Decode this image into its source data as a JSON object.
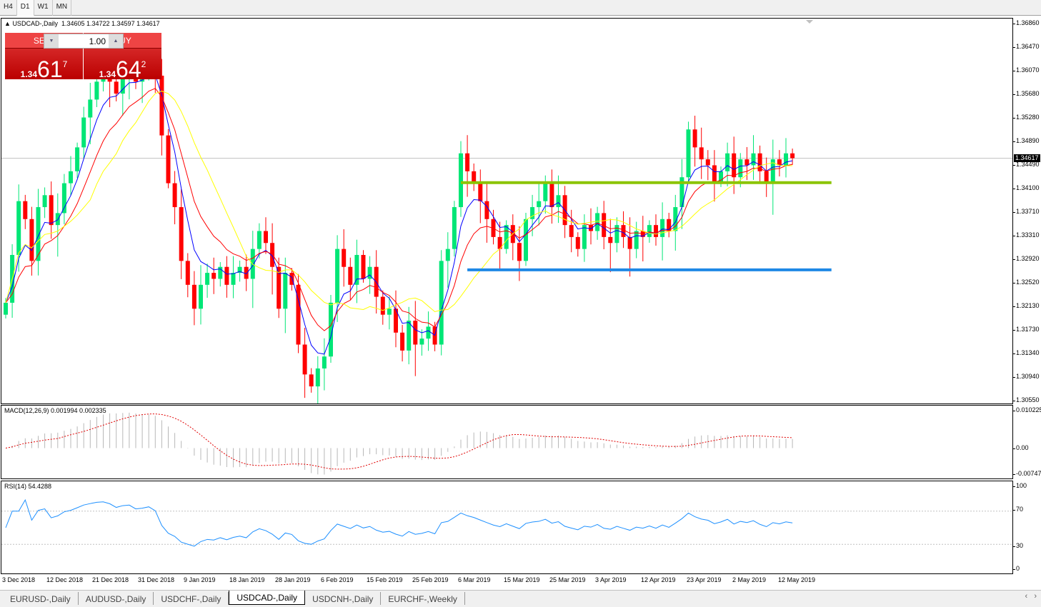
{
  "toolbar": {
    "timeframes": [
      "H4",
      "D1",
      "W1",
      "MN"
    ],
    "active": "D1"
  },
  "chart": {
    "title": "USDCAD-,Daily",
    "ohlc": "1.34605 1.34722 1.34597 1.34617",
    "current_price": "1.34617"
  },
  "trade": {
    "sell_label": "SELL",
    "buy_label": "BUY",
    "lot": "1.00",
    "sell_prefix": "1.34",
    "sell_big": "61",
    "sell_sup": "7",
    "buy_prefix": "1.34",
    "buy_big": "64",
    "buy_sup": "2"
  },
  "price_axis": [
    "1.36860",
    "1.36470",
    "1.36070",
    "1.35680",
    "1.35280",
    "1.34890",
    "1.34490",
    "1.34100",
    "1.33710",
    "1.33310",
    "1.32920",
    "1.32520",
    "1.32130",
    "1.31730",
    "1.31340",
    "1.30940",
    "1.30550"
  ],
  "price_range": [
    1.3055,
    1.3686
  ],
  "colors": {
    "bull": "#00e676",
    "bear": "#ff0000",
    "ma_fast": "#0000ff",
    "ma_mid": "#ff0000",
    "ma_slow": "#ffff00",
    "support_line": "#1e88e5",
    "resistance_line": "#8bc400",
    "rsi": "#1e90ff"
  },
  "levels": [
    {
      "name": "resistance",
      "price": 1.3421,
      "from_bar": 70,
      "to_bar": 127,
      "color": "#8bc400"
    },
    {
      "name": "support",
      "price": 1.3275,
      "from_bar": 71,
      "to_bar": 127,
      "color": "#1e88e5"
    }
  ],
  "closes": [
    1.322,
    1.33,
    1.339,
    1.336,
    1.329,
    1.338,
    1.34,
    1.335,
    1.337,
    1.342,
    1.344,
    1.348,
    1.353,
    1.356,
    1.359,
    1.36,
    1.359,
    1.357,
    1.36,
    1.361,
    1.359,
    1.36,
    1.362,
    1.36,
    1.35,
    1.342,
    1.338,
    1.329,
    1.325,
    1.321,
    1.325,
    1.327,
    1.326,
    1.328,
    1.325,
    1.327,
    1.328,
    1.326,
    1.331,
    1.334,
    1.332,
    1.328,
    1.321,
    1.327,
    1.325,
    1.315,
    1.31,
    1.308,
    1.311,
    1.313,
    1.322,
    1.331,
    1.328,
    1.325,
    1.33,
    1.326,
    1.328,
    1.323,
    1.32,
    1.321,
    1.317,
    1.314,
    1.319,
    1.315,
    1.316,
    1.318,
    1.315,
    1.329,
    1.331,
    1.338,
    1.347,
    1.344,
    1.342,
    1.339,
    1.336,
    1.333,
    1.331,
    1.335,
    1.332,
    1.329,
    1.336,
    1.338,
    1.339,
    1.342,
    1.338,
    1.34,
    1.335,
    1.333,
    1.331,
    1.335,
    1.334,
    1.337,
    1.333,
    1.332,
    1.335,
    1.333,
    1.331,
    1.334,
    1.333,
    1.335,
    1.333,
    1.336,
    1.334,
    1.338,
    1.343,
    1.351,
    1.348,
    1.346,
    1.345,
    1.342,
    1.344,
    1.347,
    1.343,
    1.346,
    1.345,
    1.347,
    1.344,
    1.342,
    1.346,
    1.345,
    1.347,
    1.3462
  ],
  "macd": {
    "label": "MACD(12,26,9) 0.001994 0.002335",
    "axis": [
      "0.010225",
      "0.00",
      "-0.00747"
    ],
    "range": [
      -0.00747,
      0.010225
    ]
  },
  "rsi": {
    "label": "RSI(14) 54.4288",
    "axis": [
      "100",
      "70",
      "30",
      "0"
    ],
    "levels": [
      70,
      30
    ]
  },
  "dates": [
    "3 Dec 2018",
    "12 Dec 2018",
    "21 Dec 2018",
    "31 Dec 2018",
    "9 Jan 2019",
    "18 Jan 2019",
    "28 Jan 2019",
    "6 Feb 2019",
    "15 Feb 2019",
    "25 Feb 2019",
    "6 Mar 2019",
    "15 Mar 2019",
    "25 Mar 2019",
    "3 Apr 2019",
    "12 Apr 2019",
    "23 Apr 2019",
    "2 May 2019",
    "12 May 2019"
  ],
  "tabs": [
    "EURUSD-,Daily",
    "AUDUSD-,Daily",
    "USDCHF-,Daily",
    "USDCAD-,Daily",
    "USDCNH-,Daily",
    "EURCHF-,Weekly"
  ],
  "active_tab": "USDCAD-,Daily"
}
